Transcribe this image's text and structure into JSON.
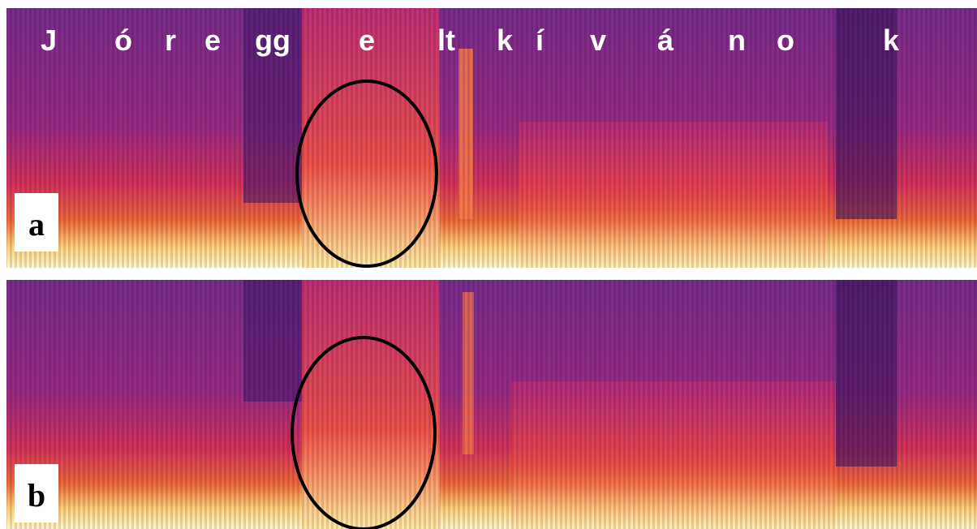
{
  "labels": {
    "phonemes": [
      "J",
      "ó",
      "r",
      "e",
      "gg",
      "e",
      "lt",
      "k",
      "í",
      "v",
      "á",
      "n",
      "o",
      "k"
    ],
    "panels": [
      "a",
      "b"
    ]
  }
}
